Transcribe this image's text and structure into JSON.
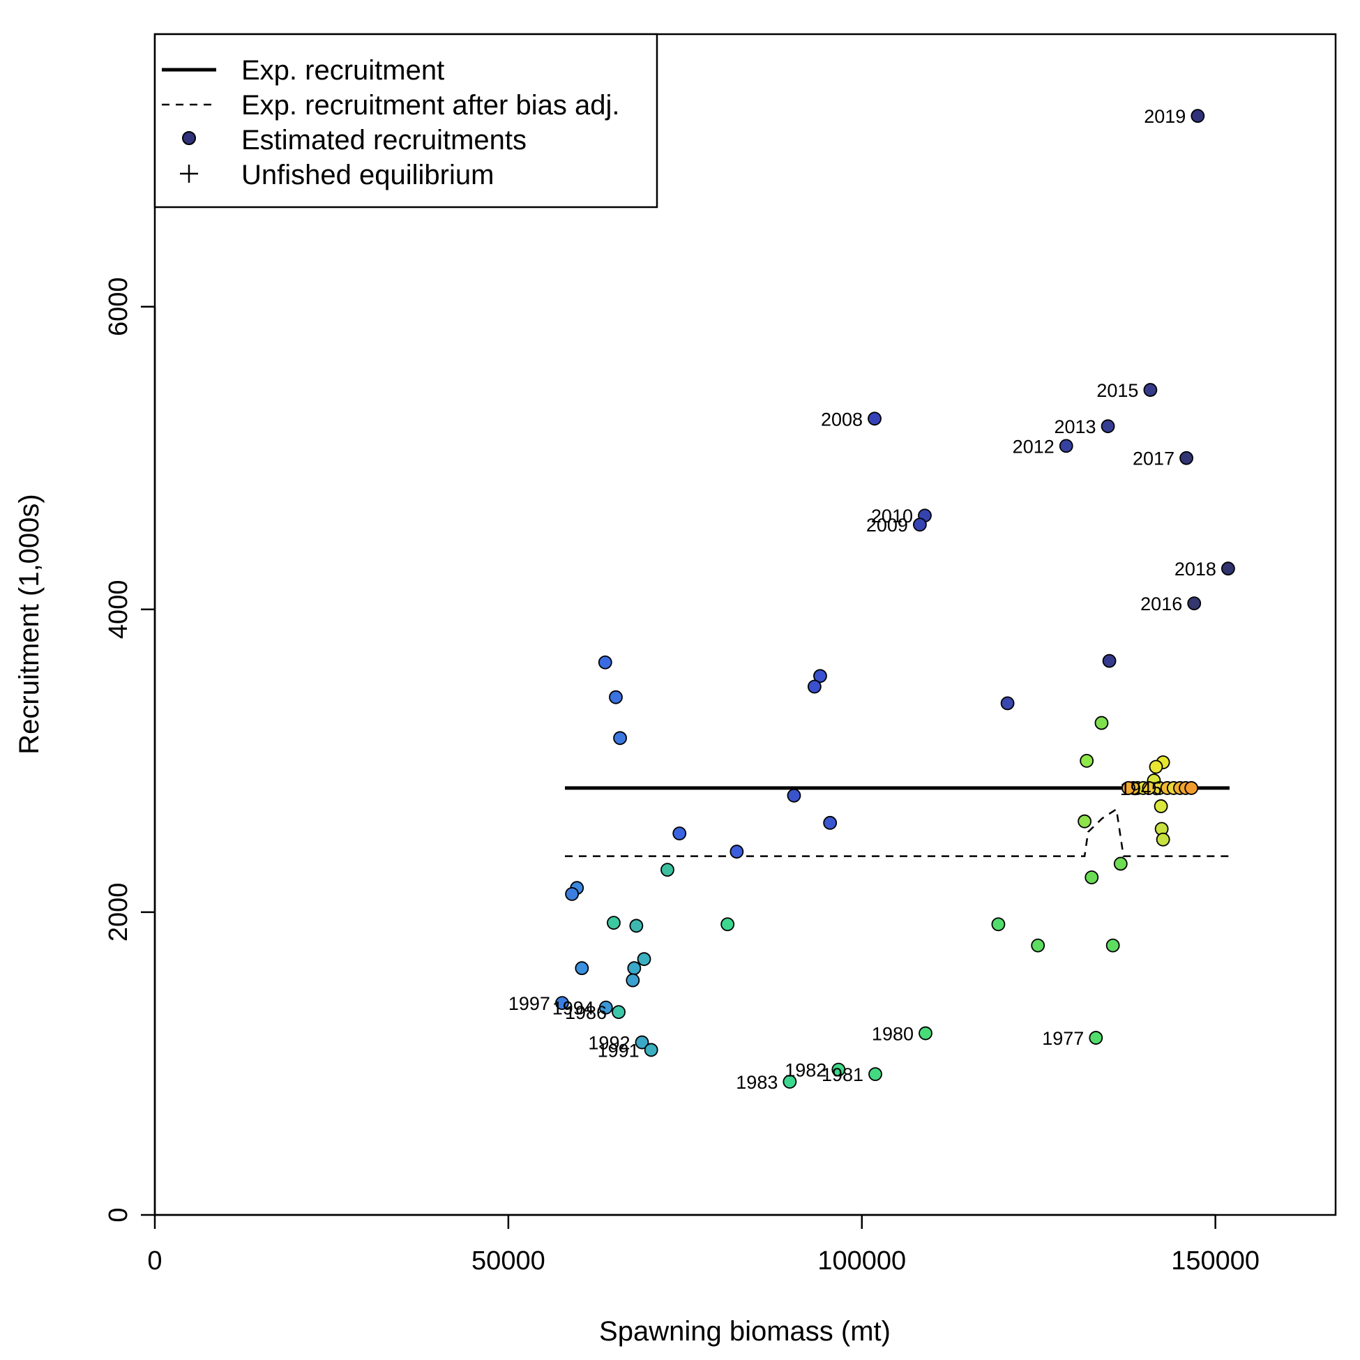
{
  "chart_data": {
    "type": "scatter",
    "xlabel": "Spawning biomass (mt)",
    "ylabel": "Recruitment (1,000s)",
    "xlim": [
      0,
      167000
    ],
    "ylim": [
      0,
      7800
    ],
    "xticks": [
      0,
      50000,
      100000,
      150000
    ],
    "yticks": [
      0,
      2000,
      4000,
      6000
    ],
    "grid": false,
    "legend_position": "top-left",
    "legend": [
      {
        "label": "Exp. recruitment",
        "symbol": "solid-line"
      },
      {
        "label": "Exp. recruitment after bias adj.",
        "symbol": "dashed-line"
      },
      {
        "label": "Estimated recruitments",
        "symbol": "filled-circle"
      },
      {
        "label": "Unfished equilibrium",
        "symbol": "plus"
      }
    ],
    "expected_recruitment": {
      "x": [
        58000,
        152000
      ],
      "y": [
        2820,
        2820
      ],
      "color": "#000000"
    },
    "expected_recruitment_bias_adj": {
      "x": [
        58000,
        131500,
        132000,
        134000,
        136000,
        137000,
        152000
      ],
      "y": [
        2370,
        2370,
        2530,
        2620,
        2680,
        2370,
        2370
      ],
      "color": "#000000"
    },
    "points": [
      {
        "x": 147500,
        "y": 7260,
        "year": "2019",
        "color": "#30337a"
      },
      {
        "x": 140800,
        "y": 5450,
        "year": "2015",
        "color": "#363c8a"
      },
      {
        "x": 101800,
        "y": 5260,
        "year": "2008",
        "color": "#3643b8"
      },
      {
        "x": 134800,
        "y": 5210,
        "year": "2013",
        "color": "#363e94"
      },
      {
        "x": 128900,
        "y": 5080,
        "year": "2012",
        "color": "#3742a0"
      },
      {
        "x": 145900,
        "y": 5000,
        "year": "2017",
        "color": "#313574"
      },
      {
        "x": 108900,
        "y": 4620,
        "year": "2010",
        "color": "#3543ae"
      },
      {
        "x": 108200,
        "y": 4560,
        "year": "2009",
        "color": "#3644b4"
      },
      {
        "x": 151800,
        "y": 4270,
        "year": "2018",
        "color": "#30336e"
      },
      {
        "x": 147000,
        "y": 4040,
        "year": "2016",
        "color": "#33376e"
      },
      {
        "x": 135000,
        "y": 3660,
        "year": "",
        "color": "#363a8c"
      },
      {
        "x": 63700,
        "y": 3650,
        "year": "",
        "color": "#3b6be0"
      },
      {
        "x": 94100,
        "y": 3560,
        "year": "",
        "color": "#3a52d0"
      },
      {
        "x": 93300,
        "y": 3490,
        "year": "",
        "color": "#3a50cc"
      },
      {
        "x": 65200,
        "y": 3420,
        "year": "",
        "color": "#3b72e0"
      },
      {
        "x": 120600,
        "y": 3380,
        "year": "",
        "color": "#3a47ae"
      },
      {
        "x": 65800,
        "y": 3150,
        "year": "",
        "color": "#3b78e0"
      },
      {
        "x": 133900,
        "y": 3250,
        "year": "",
        "color": "#7fe04e"
      },
      {
        "x": 131800,
        "y": 3000,
        "year": "",
        "color": "#8fe84a"
      },
      {
        "x": 142600,
        "y": 2990,
        "year": "",
        "color": "#e6e62e"
      },
      {
        "x": 141600,
        "y": 2960,
        "year": "",
        "color": "#e8e630"
      },
      {
        "x": 141300,
        "y": 2870,
        "year": "",
        "color": "#d9e63a"
      },
      {
        "x": 142100,
        "y": 2820,
        "year": "",
        "color": "#e8d63a"
      },
      {
        "x": 139000,
        "y": 2820,
        "year": "",
        "color": "#c8e040"
      },
      {
        "x": 139800,
        "y": 2820,
        "year": "",
        "color": "#e3e23a"
      },
      {
        "x": 140600,
        "y": 2820,
        "year": "",
        "color": "#f0c838"
      },
      {
        "x": 143200,
        "y": 2820,
        "year": "",
        "color": "#f0b834"
      },
      {
        "x": 144100,
        "y": 2820,
        "year": "1945",
        "color": "#e8d63a"
      },
      {
        "x": 145000,
        "y": 2820,
        "year": "",
        "color": "#f2ae30"
      },
      {
        "x": 145800,
        "y": 2820,
        "year": "",
        "color": "#f3a52e"
      },
      {
        "x": 146600,
        "y": 2820,
        "year": "",
        "color": "#f39c2e"
      },
      {
        "x": 138400,
        "y": 2820,
        "year": "",
        "color": "#f0b834"
      },
      {
        "x": 137700,
        "y": 2820,
        "year": "",
        "color": "#f0a830"
      },
      {
        "x": 90400,
        "y": 2770,
        "year": "",
        "color": "#3a55cc"
      },
      {
        "x": 142300,
        "y": 2700,
        "year": "",
        "color": "#d9e63c"
      },
      {
        "x": 131500,
        "y": 2600,
        "year": "",
        "color": "#8ee24a"
      },
      {
        "x": 95500,
        "y": 2590,
        "year": "",
        "color": "#3a56d0"
      },
      {
        "x": 142400,
        "y": 2550,
        "year": "",
        "color": "#c8e040"
      },
      {
        "x": 74200,
        "y": 2520,
        "year": "",
        "color": "#3b64e0"
      },
      {
        "x": 142600,
        "y": 2480,
        "year": "",
        "color": "#c8e040"
      },
      {
        "x": 82300,
        "y": 2400,
        "year": "",
        "color": "#3b5edc"
      },
      {
        "x": 136600,
        "y": 2320,
        "year": "",
        "color": "#6edc54"
      },
      {
        "x": 72500,
        "y": 2280,
        "year": "",
        "color": "#3cc0a0"
      },
      {
        "x": 132500,
        "y": 2230,
        "year": "",
        "color": "#6adc56"
      },
      {
        "x": 59700,
        "y": 2160,
        "year": "",
        "color": "#3b88e0"
      },
      {
        "x": 59000,
        "y": 2120,
        "year": "",
        "color": "#3b7ee0"
      },
      {
        "x": 64900,
        "y": 1930,
        "year": "",
        "color": "#3cc8a0"
      },
      {
        "x": 68100,
        "y": 1910,
        "year": "",
        "color": "#3cb8b0"
      },
      {
        "x": 81000,
        "y": 1920,
        "year": "",
        "color": "#3cd890"
      },
      {
        "x": 119300,
        "y": 1920,
        "year": "",
        "color": "#52dc6c"
      },
      {
        "x": 124900,
        "y": 1780,
        "year": "",
        "color": "#5cdc60"
      },
      {
        "x": 135500,
        "y": 1780,
        "year": "",
        "color": "#5edc60"
      },
      {
        "x": 69200,
        "y": 1690,
        "year": "",
        "color": "#3cb0c0"
      },
      {
        "x": 60400,
        "y": 1630,
        "year": "",
        "color": "#3b90e0"
      },
      {
        "x": 67800,
        "y": 1630,
        "year": "",
        "color": "#3ca8c8"
      },
      {
        "x": 67600,
        "y": 1550,
        "year": "",
        "color": "#3ca0d0"
      },
      {
        "x": 57600,
        "y": 1400,
        "year": "1997",
        "color": "#3b7ee0"
      },
      {
        "x": 63800,
        "y": 1370,
        "year": "1994",
        "color": "#3b98d8"
      },
      {
        "x": 65600,
        "y": 1340,
        "year": "1986",
        "color": "#3cc8a8"
      },
      {
        "x": 109000,
        "y": 1200,
        "year": "1980",
        "color": "#48dc78"
      },
      {
        "x": 133100,
        "y": 1170,
        "year": "1977",
        "color": "#52dc6a"
      },
      {
        "x": 68900,
        "y": 1140,
        "year": "1992",
        "color": "#3ca8c8"
      },
      {
        "x": 70200,
        "y": 1090,
        "year": "1991",
        "color": "#3cb0c0"
      },
      {
        "x": 96700,
        "y": 960,
        "year": "1982",
        "color": "#40d888"
      },
      {
        "x": 101900,
        "y": 930,
        "year": "1981",
        "color": "#44d880"
      },
      {
        "x": 89800,
        "y": 880,
        "year": "1983",
        "color": "#3cd890"
      }
    ]
  }
}
